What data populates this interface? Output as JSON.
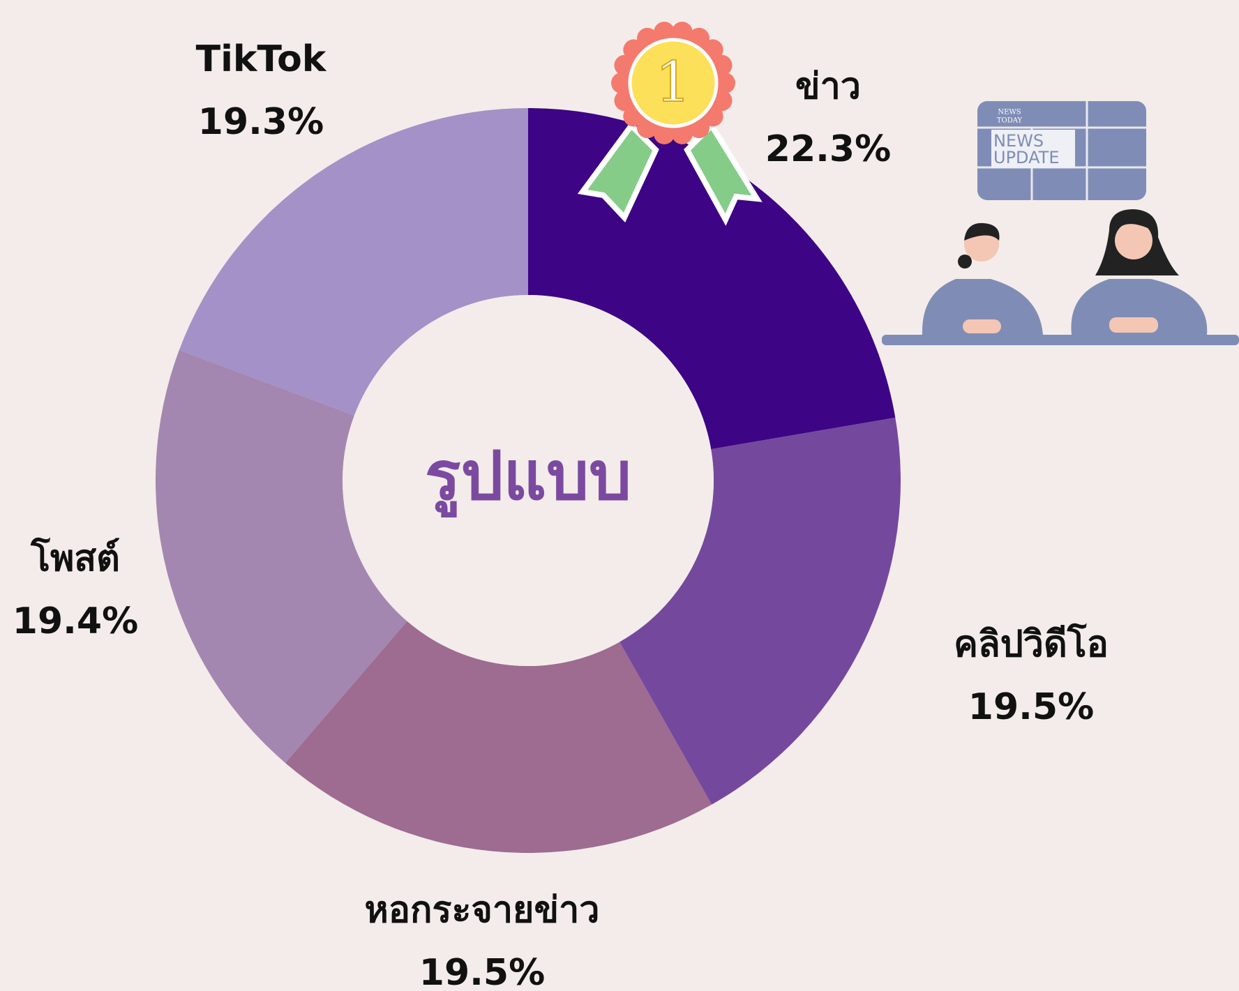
{
  "chart_data": {
    "type": "pie",
    "center_label": "รูปแบบ",
    "categories": [
      "ข่าว",
      "คลิปวิดีโอ",
      "หอกระจายข่าว",
      "โพสต์",
      "TikTok"
    ],
    "values": [
      22.3,
      19.5,
      19.5,
      19.4,
      19.3
    ],
    "value_labels": [
      "22.3%",
      "19.5%",
      "19.5%",
      "19.4%",
      "19.3%"
    ],
    "colors": [
      "#3d0585",
      "#74499d",
      "#9e6b91",
      "#a387b1",
      "#a391c8"
    ]
  },
  "badge": "1",
  "news_logo": [
    "NEWS",
    "TODAY"
  ],
  "news_banner": [
    "NEWS",
    "UPDATE"
  ]
}
